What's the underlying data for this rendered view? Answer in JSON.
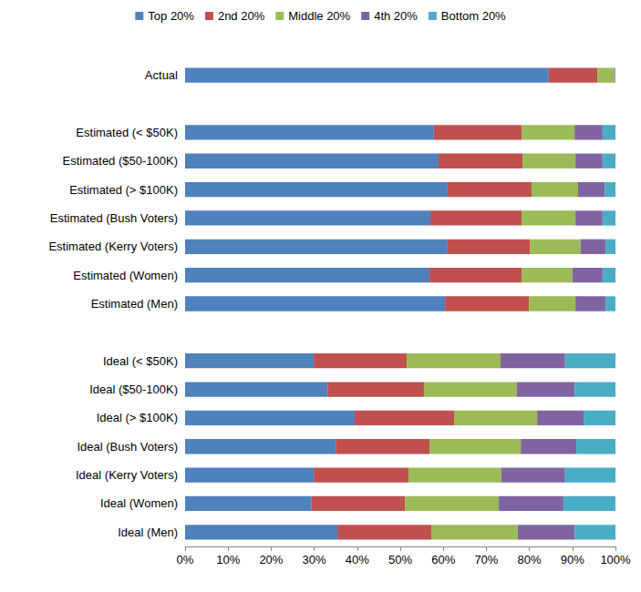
{
  "chart_data": {
    "type": "bar",
    "orientation": "horizontal",
    "stacked": true,
    "grid": false,
    "legend": "top",
    "categories": [
      "Actual",
      null,
      "Estimated (< $50K)",
      "Estimated ($50-100K)",
      "Estimated (> $100K)",
      "Estimated (Bush Voters)",
      "Estimated (Kerry Voters)",
      "Estimated (Women)",
      "Estimated (Men)",
      null,
      "Ideal (< $50K)",
      "Ideal ($50-100K)",
      "Ideal (> $100K)",
      "Ideal (Bush Voters)",
      "Ideal (Kerry Voters)",
      "Ideal (Women)",
      "Ideal (Men)"
    ],
    "series": [
      {
        "name": "Top 20%",
        "color": "#4F81BD",
        "values": [
          84.5,
          null,
          57.8,
          58.9,
          61.0,
          57.0,
          61.0,
          56.8,
          60.4,
          null,
          29.9,
          33.1,
          39.4,
          35.0,
          29.9,
          29.4,
          35.4
        ]
      },
      {
        "name": "2nd 20%",
        "color": "#C0504D",
        "values": [
          11.3,
          null,
          20.4,
          19.5,
          19.5,
          21.2,
          19.1,
          21.4,
          19.5,
          null,
          21.6,
          22.4,
          23.1,
          21.8,
          22.0,
          21.7,
          21.8
        ]
      },
      {
        "name": "Middle 20%",
        "color": "#9BBB59",
        "values": [
          3.9,
          null,
          12.3,
          12.3,
          10.8,
          12.5,
          11.8,
          11.8,
          10.8,
          null,
          21.8,
          21.6,
          19.3,
          21.2,
          21.6,
          21.8,
          20.1
        ]
      },
      {
        "name": "4th 20%",
        "color": "#8064A2",
        "values": [
          0.2,
          null,
          6.5,
          6.3,
          6.2,
          6.3,
          5.8,
          7.0,
          7.0,
          null,
          15.0,
          13.4,
          10.8,
          12.9,
          14.8,
          15.0,
          13.2
        ]
      },
      {
        "name": "Bottom 20%",
        "color": "#4BACC6",
        "values": [
          0.1,
          null,
          3.0,
          3.0,
          2.5,
          3.0,
          2.3,
          3.0,
          2.3,
          null,
          11.7,
          9.5,
          7.4,
          9.1,
          11.7,
          12.1,
          9.5
        ]
      }
    ],
    "xlim": [
      0,
      100
    ],
    "xticks": [
      {
        "value": 0,
        "label": "0%"
      },
      {
        "value": 10,
        "label": "10%"
      },
      {
        "value": 20,
        "label": "20%"
      },
      {
        "value": 30,
        "label": "30%"
      },
      {
        "value": 40,
        "label": "40%"
      },
      {
        "value": 50,
        "label": "50%"
      },
      {
        "value": 60,
        "label": "60%"
      },
      {
        "value": 70,
        "label": "70%"
      },
      {
        "value": 80,
        "label": "80%"
      },
      {
        "value": 90,
        "label": "90%"
      },
      {
        "value": 100,
        "label": "100%"
      }
    ]
  }
}
